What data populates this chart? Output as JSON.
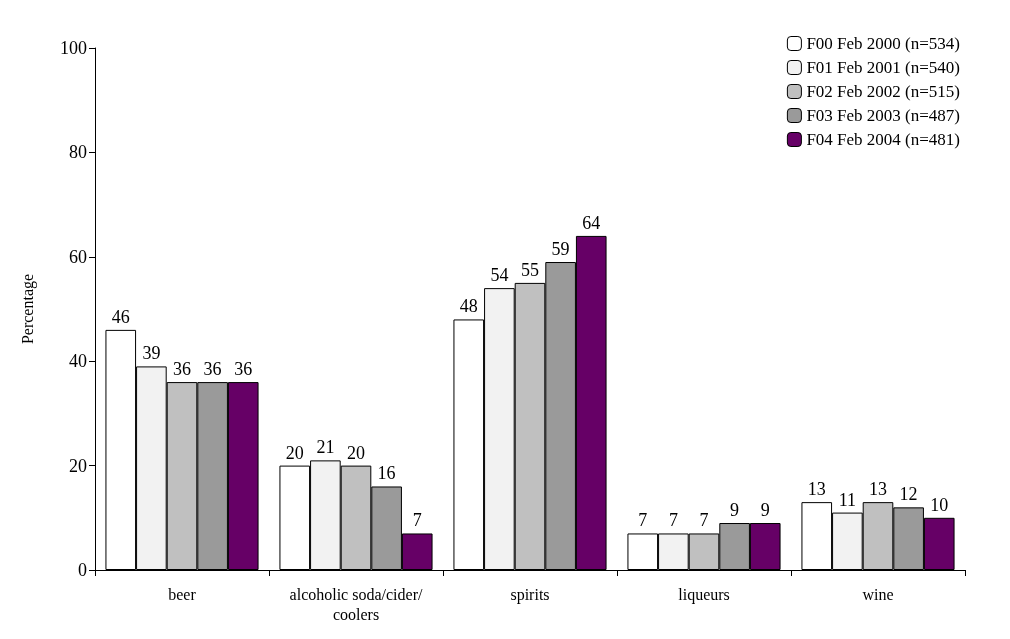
{
  "chart_data": {
    "type": "bar",
    "ylabel": "Percentage",
    "categories": [
      "beer",
      "alcoholic soda/cider/coolers",
      "spirits",
      "liqueurs",
      "wine"
    ],
    "series": [
      {
        "name": "F00 Feb 2000 (n=534)",
        "color": "#ffffff",
        "values": [
          46,
          20,
          48,
          7,
          13
        ]
      },
      {
        "name": "F01 Feb 2001 (n=540)",
        "color": "#f2f2f2",
        "values": [
          39,
          21,
          54,
          7,
          11
        ]
      },
      {
        "name": "F02 Feb 2002 (n=515)",
        "color": "#c0c0c0",
        "values": [
          36,
          20,
          55,
          7,
          13
        ]
      },
      {
        "name": "F03 Feb 2003 (n=487)",
        "color": "#9a9a9a",
        "values": [
          36,
          16,
          59,
          9,
          12
        ]
      },
      {
        "name": "F04 Feb 2004 (n=481)",
        "color": "#660066",
        "values": [
          36,
          7,
          64,
          9,
          10
        ]
      }
    ],
    "ylim": [
      0,
      100
    ],
    "yticks": [
      0,
      20,
      40,
      60,
      80,
      100
    ],
    "grid": false,
    "legend": "top right",
    "data_labels": true
  }
}
